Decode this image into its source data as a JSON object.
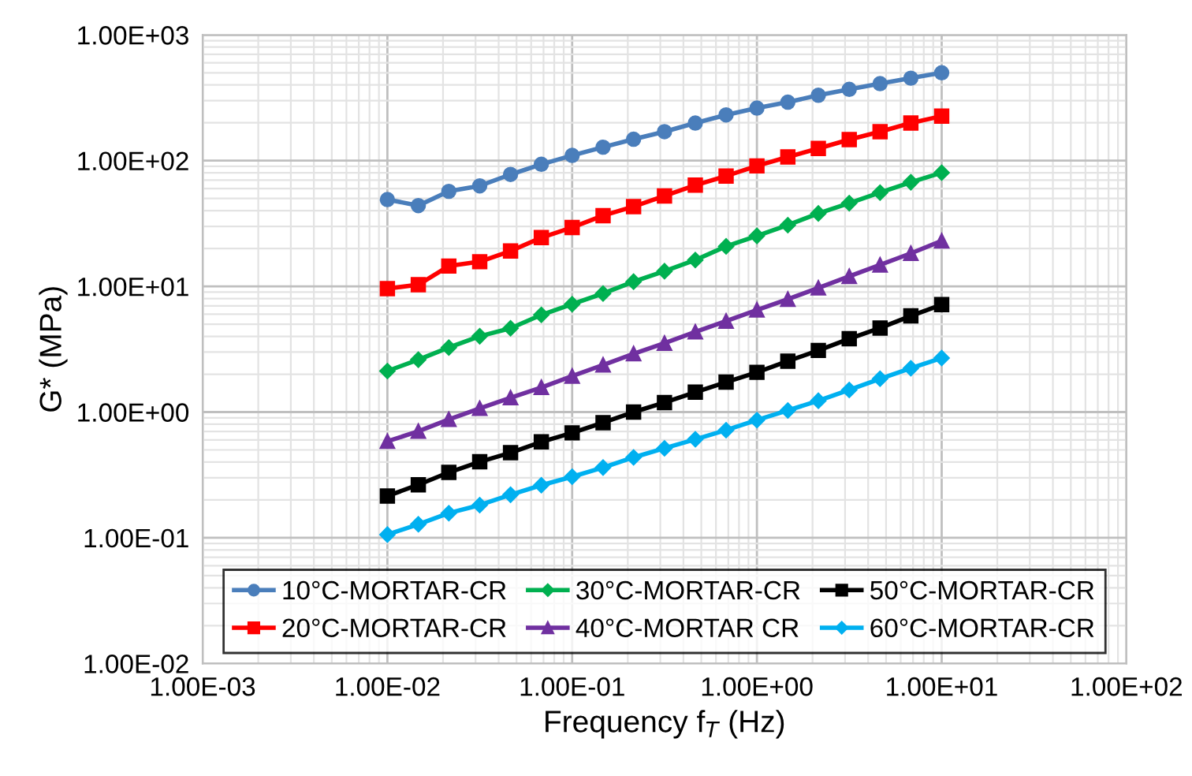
{
  "chart_data": {
    "type": "line",
    "xlabel": "Frequency f$_{T}$ (Hz)",
    "ylabel": "G* (MPa)",
    "x": [
      0.01,
      0.0147,
      0.0215,
      0.0316,
      0.0464,
      0.0681,
      0.1,
      0.147,
      0.215,
      0.316,
      0.464,
      0.681,
      1,
      1.47,
      2.15,
      3.16,
      4.64,
      6.81,
      10
    ],
    "series": [
      {
        "name": "10°C-MORTAR-CR",
        "color": "#4a7ebb",
        "marker": "circle",
        "values": [
          49,
          43.9,
          57,
          63,
          77.6,
          93.5,
          110,
          128,
          148,
          170,
          199,
          231,
          262,
          292,
          331,
          369,
          410,
          453,
          500
        ]
      },
      {
        "name": "20°C-MORTAR-CR",
        "color": "#ff0000",
        "marker": "square",
        "values": [
          9.6,
          10.3,
          14.5,
          15.7,
          19.1,
          24.4,
          29.4,
          36.5,
          43.1,
          52.4,
          63.8,
          75.4,
          90.8,
          107,
          125,
          147,
          170,
          199,
          226
        ]
      },
      {
        "name": "30°C-MORTAR-CR",
        "color": "#00b050",
        "marker": "diamond",
        "values": [
          2.12,
          2.61,
          3.26,
          4.01,
          4.64,
          5.93,
          7.21,
          8.77,
          10.9,
          13.2,
          16.2,
          20.8,
          25.2,
          30.7,
          38.0,
          45.9,
          55.7,
          67.3,
          80.2
        ]
      },
      {
        "name": "40°C-MORTAR CR",
        "color": "#7030a0",
        "marker": "triangle",
        "values": [
          0.585,
          0.703,
          0.874,
          1.07,
          1.3,
          1.57,
          1.93,
          2.37,
          2.91,
          3.53,
          4.34,
          5.29,
          6.49,
          7.9,
          9.71,
          12.0,
          14.8,
          18.3,
          23.0
        ]
      },
      {
        "name": "50°C-MORTAR-CR",
        "color": "#000000",
        "marker": "square",
        "values": [
          0.215,
          0.264,
          0.331,
          0.402,
          0.475,
          0.579,
          0.683,
          0.824,
          1.0,
          1.19,
          1.44,
          1.73,
          2.07,
          2.54,
          3.09,
          3.83,
          4.66,
          5.82,
          7.16
        ]
      },
      {
        "name": "60°C-MORTAR-CR",
        "color": "#00b0f0",
        "marker": "diamond",
        "values": [
          0.106,
          0.128,
          0.157,
          0.182,
          0.22,
          0.262,
          0.306,
          0.362,
          0.436,
          0.515,
          0.607,
          0.718,
          0.863,
          1.03,
          1.23,
          1.5,
          1.84,
          2.23,
          2.69
        ]
      }
    ],
    "log": "xy",
    "xlim": [
      0.001,
      100
    ],
    "ylim": [
      0.01,
      1000
    ],
    "xticks": [
      {
        "value": 0.001,
        "label": "1.00E-03"
      },
      {
        "value": 0.01,
        "label": "1.00E-02"
      },
      {
        "value": 0.1,
        "label": "1.00E-01"
      },
      {
        "value": 1,
        "label": "1.00E+00"
      },
      {
        "value": 10,
        "label": "1.00E+01"
      },
      {
        "value": 100,
        "label": "1.00E+02"
      }
    ],
    "yticks": [
      {
        "value": 0.01,
        "label": "1.00E-02"
      },
      {
        "value": 0.1,
        "label": "1.00E-01"
      },
      {
        "value": 1,
        "label": "1.00E+00"
      },
      {
        "value": 10,
        "label": "1.00E+01"
      },
      {
        "value": 100,
        "label": "1.00E+02"
      },
      {
        "value": 1000,
        "label": "1.00E+03"
      }
    ],
    "grid": true,
    "legend": "bottom",
    "line_style": "solid"
  }
}
